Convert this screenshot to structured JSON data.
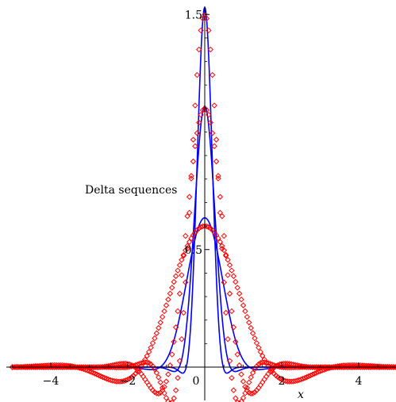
{
  "chart_data": {
    "type": "line",
    "title": "",
    "annotation": "Delta sequences",
    "xlabel": "x",
    "ylabel": "",
    "xlim": [
      -5,
      5
    ],
    "ylim": [
      -0.12,
      1.55
    ],
    "x_ticks": [
      -4,
      -2,
      2,
      4
    ],
    "x_tick_labels": [
      "−4",
      "−2",
      "2",
      "4"
    ],
    "origin_label": "0",
    "y_ticks": [
      0.5,
      1.5
    ],
    "y_tick_labels": [
      "0.5",
      "1.5"
    ],
    "grid": false,
    "legend": "none",
    "series": [
      {
        "style": "line",
        "color": "#0000ff",
        "family": "gaussian",
        "peak": 0.635
      },
      {
        "style": "line",
        "color": "#0000ff",
        "family": "gaussian",
        "peak": 1.11
      },
      {
        "style": "line",
        "color": "#0000ff",
        "family": "gaussian",
        "peak": 1.53
      },
      {
        "style": "diamond-markers",
        "color": "#ff0000",
        "family": "sinc",
        "peak": 0.6
      },
      {
        "style": "diamond-markers",
        "color": "#ff0000",
        "family": "sinc",
        "peak": 1.1
      },
      {
        "style": "diamond-markers",
        "color": "#ff0000",
        "family": "sinc",
        "peak": 1.5
      }
    ]
  }
}
